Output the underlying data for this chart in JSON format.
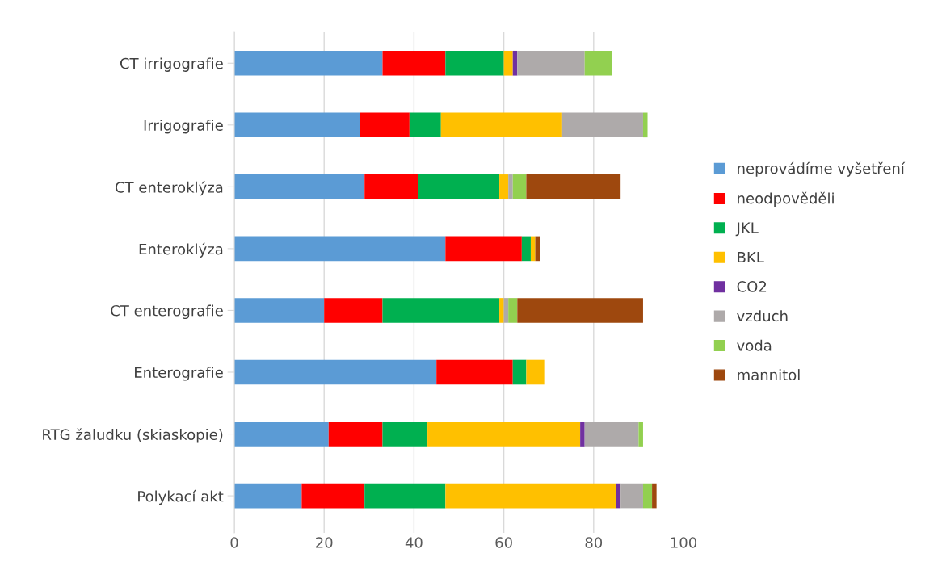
{
  "chart_data": {
    "type": "bar",
    "orientation": "horizontal",
    "stacked": true,
    "categories": [
      "CT irrigografie",
      "Irrigografie",
      "CT enteroklýza",
      "Enteroklýza",
      "CT enterografie",
      "Enterografie",
      "RTG žaludku (skiaskopie)",
      "Polykací akt"
    ],
    "series": [
      {
        "name": "neprovádíme vyšetření",
        "color": "#5b9bd5",
        "values": [
          33,
          28,
          29,
          47,
          20,
          45,
          21,
          15
        ]
      },
      {
        "name": "neodpověděli",
        "color": "#ff0000",
        "values": [
          14,
          11,
          12,
          17,
          13,
          17,
          12,
          14
        ]
      },
      {
        "name": "JKL",
        "color": "#00b050",
        "values": [
          13,
          7,
          18,
          2,
          26,
          3,
          10,
          18
        ]
      },
      {
        "name": "BKL",
        "color": "#ffc000",
        "values": [
          2,
          27,
          2,
          1,
          1,
          4,
          34,
          38
        ]
      },
      {
        "name": "CO2",
        "color": "#7030a0",
        "values": [
          1,
          0,
          0,
          0,
          0,
          0,
          1,
          1
        ]
      },
      {
        "name": "vzduch",
        "color": "#aeaaaa",
        "values": [
          15,
          18,
          1,
          0,
          1,
          0,
          12,
          5
        ]
      },
      {
        "name": "voda",
        "color": "#92d050",
        "values": [
          6,
          1,
          3,
          0,
          2,
          0,
          1,
          2
        ]
      },
      {
        "name": "mannitol",
        "color": "#9e480e",
        "values": [
          0,
          0,
          21,
          1,
          28,
          0,
          0,
          1
        ]
      }
    ],
    "xlim": [
      0,
      100
    ],
    "xticks": [
      0,
      20,
      40,
      60,
      80,
      100
    ],
    "grid": "x",
    "legend": "right"
  }
}
